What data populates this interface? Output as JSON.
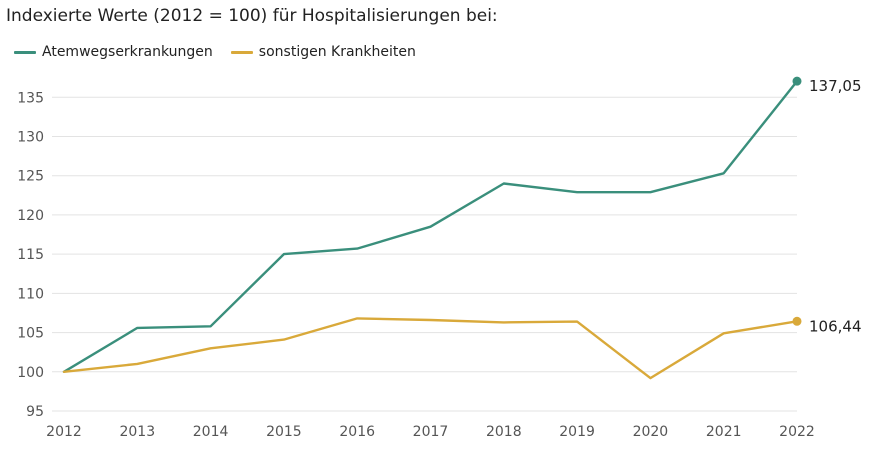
{
  "chart_data": {
    "type": "line",
    "title": "Indexierte Werte (2012 = 100) für Hospitalisierungen bei:",
    "x": [
      "2012",
      "2013",
      "2014",
      "2015",
      "2016",
      "2017",
      "2018",
      "2019",
      "2020",
      "2021",
      "2022"
    ],
    "series": [
      {
        "name": "Atemwegserkrankungen",
        "color": "#3a8f7c",
        "values": [
          100,
          105.6,
          105.8,
          115.0,
          115.7,
          118.5,
          124.0,
          122.9,
          122.9,
          125.3,
          137.05
        ],
        "end_label": "137,05"
      },
      {
        "name": "sonstigen Krankheiten",
        "color": "#d9a93a",
        "values": [
          100,
          101.0,
          103.0,
          104.1,
          106.8,
          106.6,
          106.3,
          106.4,
          99.2,
          104.9,
          106.44
        ],
        "end_label": "106,44"
      }
    ],
    "yticks": [
      "95",
      "100",
      "105",
      "110",
      "115",
      "120",
      "125",
      "130",
      "135"
    ],
    "ylim": [
      95,
      137.5
    ],
    "grid": true,
    "legend_position": "top-left"
  }
}
